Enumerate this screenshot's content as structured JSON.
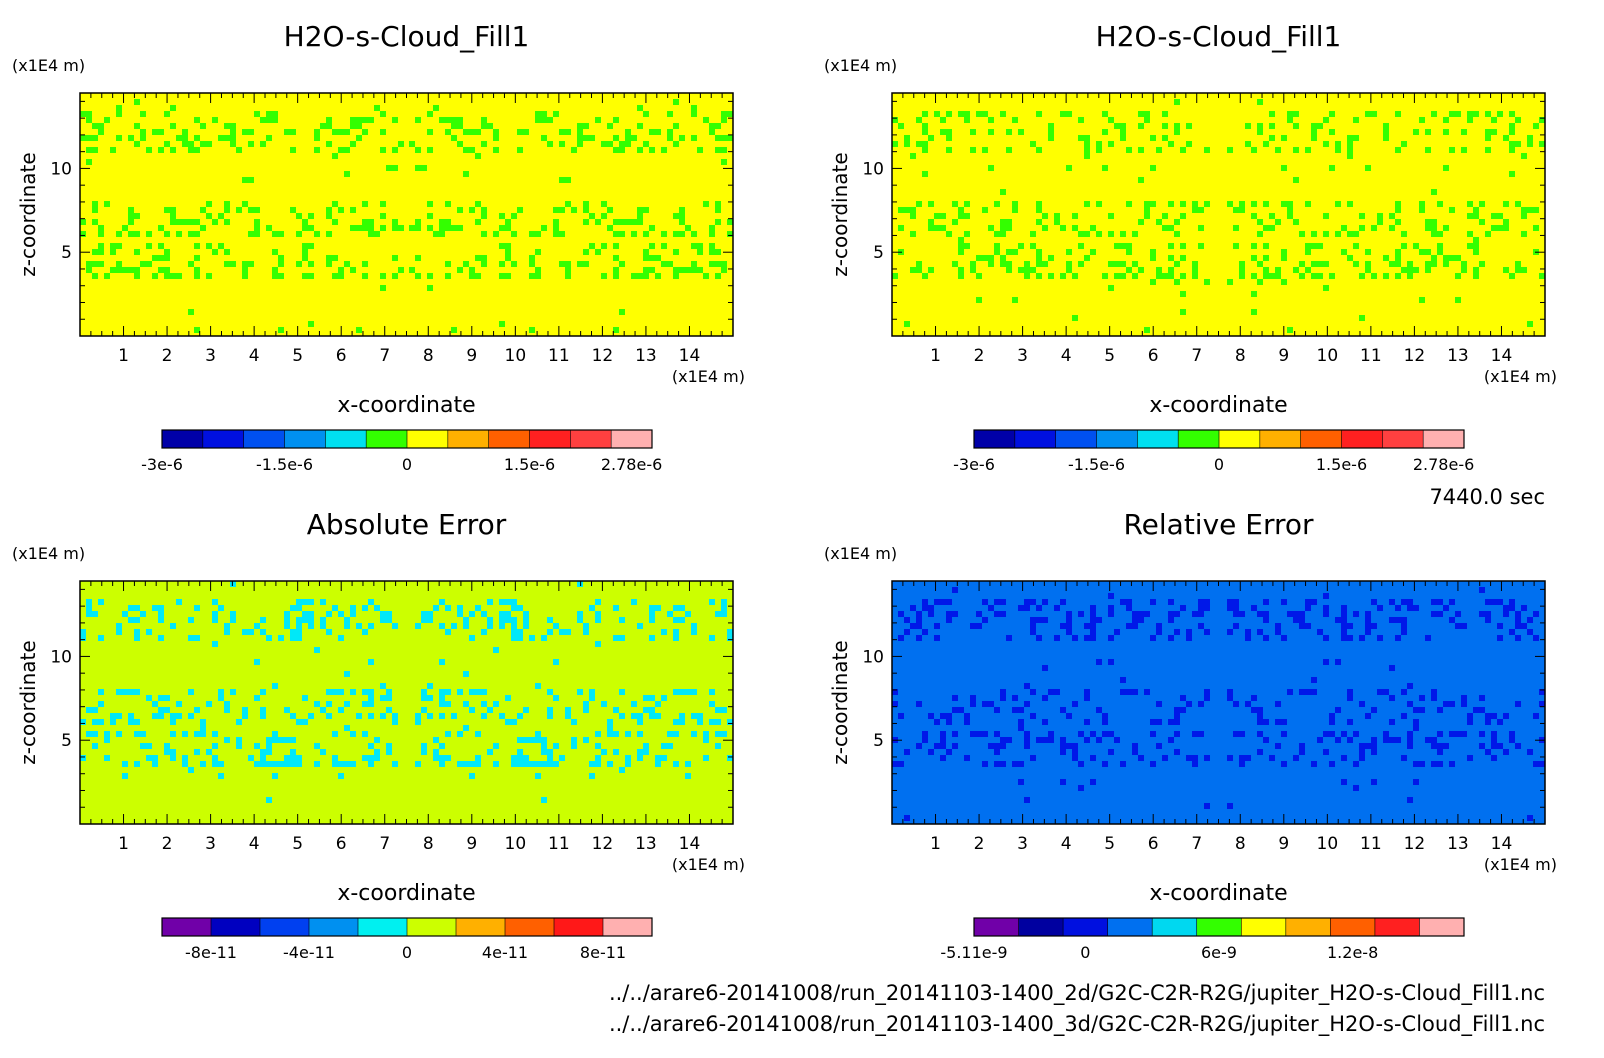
{
  "footer": {
    "time_label": "7440.0 sec",
    "file_2d": "../../arare6-20141008/run_20141103-1400_2d/G2C-C2R-R2G/jupiter_H2O-s-Cloud_Fill1.nc",
    "file_3d": "../../arare6-20141008/run_20141103-1400_3d/G2C-C2R-R2G/jupiter_H2O-s-Cloud_Fill1.nc"
  },
  "chart_data": [
    {
      "type": "heatmap",
      "title": "H2O-s-Cloud_Fill1",
      "xlabel": "x-coordinate",
      "ylabel": "z-coordinate",
      "x_unit": "(x1E4 m)",
      "z_unit": "(x1E4 m)",
      "xlim": [
        0,
        15
      ],
      "zlim": [
        0,
        14.5
      ],
      "x_ticks": [
        "1",
        "2",
        "3",
        "4",
        "5",
        "6",
        "7",
        "8",
        "9",
        "10",
        "11",
        "12",
        "13",
        "14"
      ],
      "z_ticks": [
        "5",
        "10"
      ],
      "background_color": "#ffff00",
      "feature_color": "#33ff00",
      "colorbar": {
        "colors": [
          "#0000a8",
          "#0010e0",
          "#0050f0",
          "#0090f0",
          "#00e0f0",
          "#33ff00",
          "#ffff00",
          "#ffb000",
          "#ff6000",
          "#ff2020",
          "#ff4040",
          "#ffb0b0"
        ],
        "tick_labels": [
          "-3e-6",
          "-1.5e-6",
          "0",
          "1.5e-6",
          "2.78e-6"
        ],
        "tick_positions": [
          0,
          3,
          6,
          9,
          11.5
        ]
      }
    },
    {
      "type": "heatmap",
      "title": "H2O-s-Cloud_Fill1",
      "xlabel": "x-coordinate",
      "ylabel": "z-coordinate",
      "x_unit": "(x1E4 m)",
      "z_unit": "(x1E4 m)",
      "xlim": [
        0,
        15
      ],
      "zlim": [
        0,
        14.5
      ],
      "x_ticks": [
        "1",
        "2",
        "3",
        "4",
        "5",
        "6",
        "7",
        "8",
        "9",
        "10",
        "11",
        "12",
        "13",
        "14"
      ],
      "z_ticks": [
        "5",
        "10"
      ],
      "background_color": "#ffff00",
      "feature_color": "#33ff00",
      "colorbar": {
        "colors": [
          "#0000a8",
          "#0010e0",
          "#0050f0",
          "#0090f0",
          "#00e0f0",
          "#33ff00",
          "#ffff00",
          "#ffb000",
          "#ff6000",
          "#ff2020",
          "#ff4040",
          "#ffb0b0"
        ],
        "tick_labels": [
          "-3e-6",
          "-1.5e-6",
          "0",
          "1.5e-6",
          "2.78e-6"
        ],
        "tick_positions": [
          0,
          3,
          6,
          9,
          11.5
        ]
      }
    },
    {
      "type": "heatmap",
      "title": "Absolute Error",
      "xlabel": "x-coordinate",
      "ylabel": "z-coordinate",
      "x_unit": "(x1E4 m)",
      "z_unit": "(x1E4 m)",
      "xlim": [
        0,
        15
      ],
      "zlim": [
        0,
        14.5
      ],
      "x_ticks": [
        "1",
        "2",
        "3",
        "4",
        "5",
        "6",
        "7",
        "8",
        "9",
        "10",
        "11",
        "12",
        "13",
        "14"
      ],
      "z_ticks": [
        "5",
        "10"
      ],
      "background_color": "#ccff00",
      "feature_color": "#00e8f8",
      "colorbar": {
        "colors": [
          "#7000a8",
          "#0000c0",
          "#0040f0",
          "#0090f0",
          "#00f0f0",
          "#ccff00",
          "#ffb000",
          "#ff6000",
          "#ff1818",
          "#ffb0b0"
        ],
        "tick_labels": [
          "-8e-11",
          "-4e-11",
          "0",
          "4e-11",
          "8e-11"
        ],
        "tick_positions": [
          1,
          3,
          5,
          7,
          9
        ]
      }
    },
    {
      "type": "heatmap",
      "title": "Relative Error",
      "xlabel": "x-coordinate",
      "ylabel": "z-coordinate",
      "x_unit": "(x1E4 m)",
      "z_unit": "(x1E4 m)",
      "xlim": [
        0,
        15
      ],
      "zlim": [
        0,
        14.5
      ],
      "x_ticks": [
        "1",
        "2",
        "3",
        "4",
        "5",
        "6",
        "7",
        "8",
        "9",
        "10",
        "11",
        "12",
        "13",
        "14"
      ],
      "z_ticks": [
        "5",
        "10"
      ],
      "background_color": "#0070f0",
      "feature_color": "#0018e8",
      "colorbar": {
        "colors": [
          "#7000a8",
          "#0000a0",
          "#0010e0",
          "#0070f0",
          "#00d8f0",
          "#33ff00",
          "#ffff00",
          "#ffb000",
          "#ff6000",
          "#ff2020",
          "#ffb0b0"
        ],
        "tick_labels": [
          "-5.11e-9",
          "0",
          "6e-9",
          "1.2e-8"
        ],
        "tick_positions": [
          0,
          2.5,
          5.5,
          8.5
        ]
      }
    }
  ]
}
